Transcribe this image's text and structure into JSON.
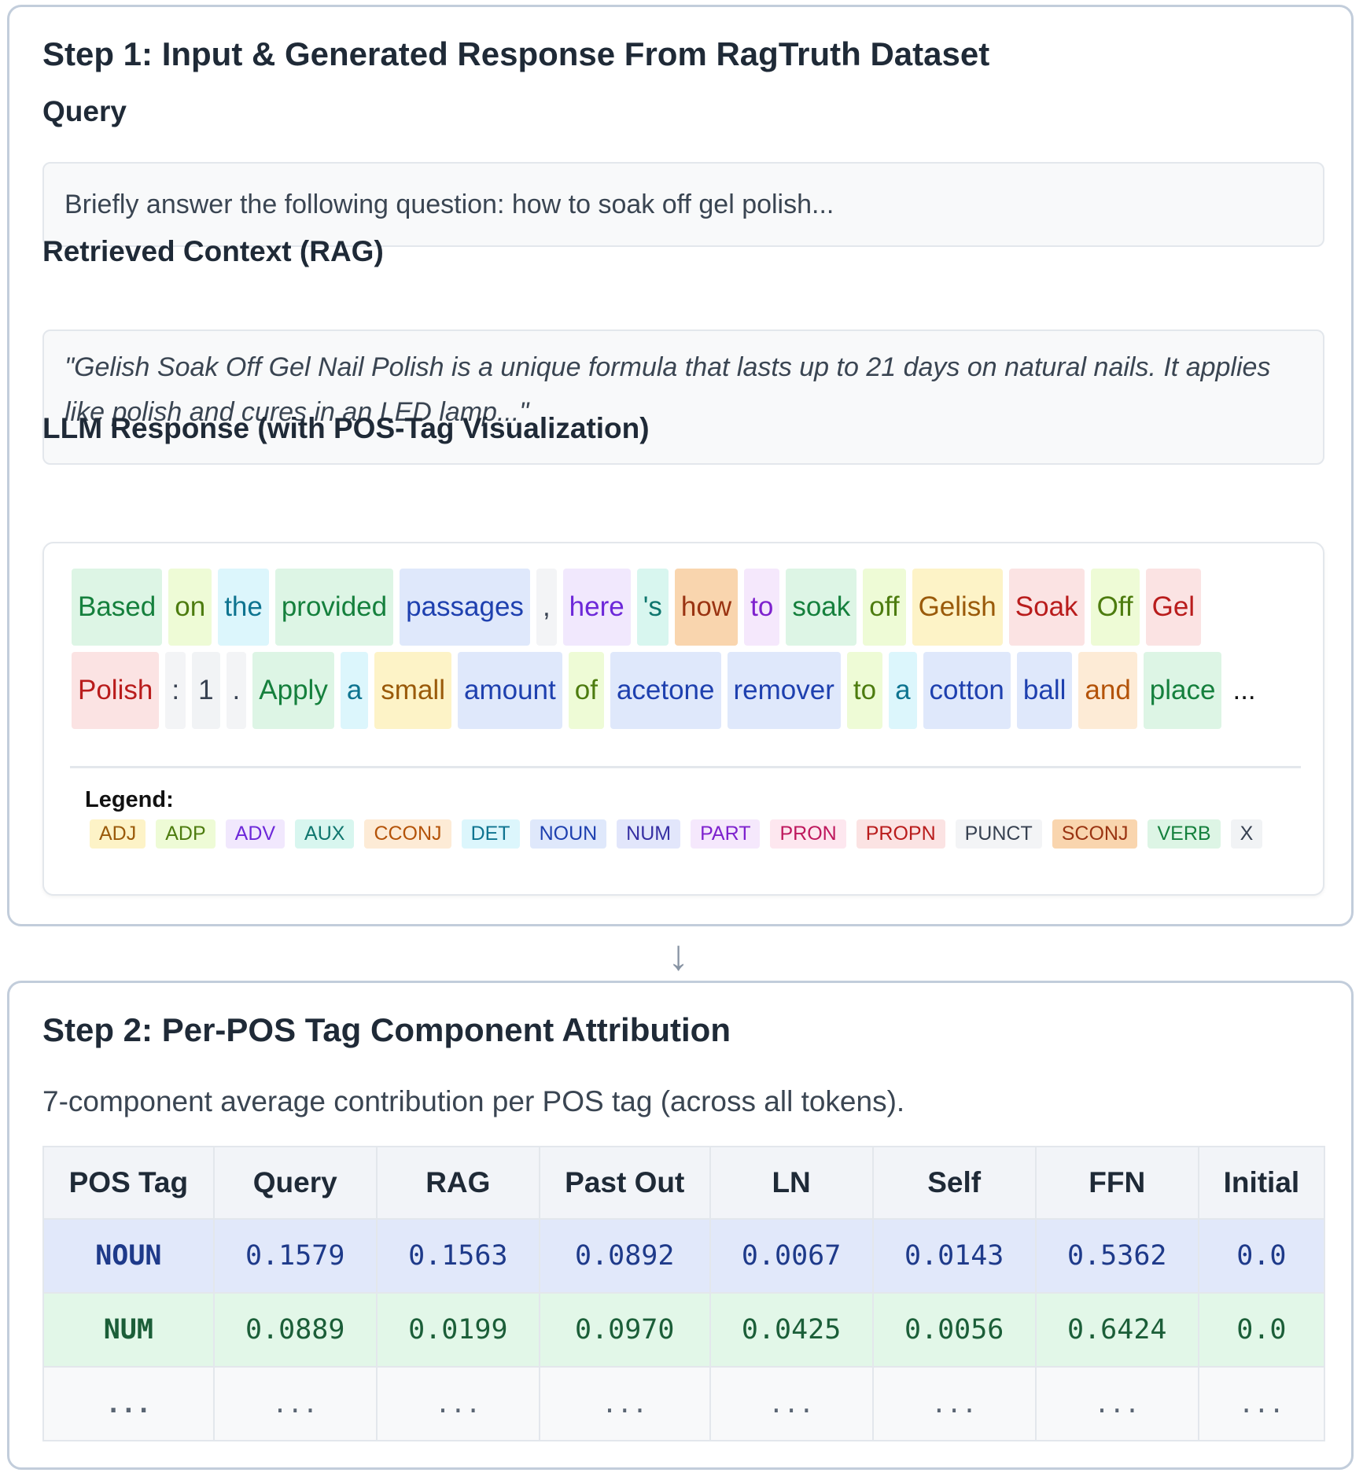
{
  "step1": {
    "title": "Step 1: Input & Generated Response From RagTruth Dataset",
    "query_label": "Query",
    "query_text": "Briefly answer the following question: how to soak off gel polish...",
    "context_label": "Retrieved Context (RAG)",
    "context_text": "\"Gelish Soak Off Gel Nail Polish is a unique formula that lasts up to 21 days on natural nails. It applies like polish and cures in an LED lamp...\"",
    "response_label": "LLM Response (with POS-Tag Visualization)",
    "token_lines": [
      [
        {
          "text": "Based",
          "pos": "VERB"
        },
        {
          "text": "on",
          "pos": "ADP"
        },
        {
          "text": "the",
          "pos": "DET"
        },
        {
          "text": "provided",
          "pos": "VERB"
        },
        {
          "text": "passages",
          "pos": "NOUN"
        },
        {
          "text": ",",
          "pos": "PUNCT"
        },
        {
          "text": "here",
          "pos": "ADV"
        },
        {
          "text": "'s",
          "pos": "AUX"
        },
        {
          "text": "how",
          "pos": "SCONJ"
        },
        {
          "text": "to",
          "pos": "PART"
        },
        {
          "text": "soak",
          "pos": "VERB"
        },
        {
          "text": "off",
          "pos": "ADP"
        },
        {
          "text": "Gelish",
          "pos": "ADJ"
        },
        {
          "text": "Soak",
          "pos": "PROPN"
        },
        {
          "text": "Off",
          "pos": "ADP"
        },
        {
          "text": "Gel",
          "pos": "PROPN"
        }
      ],
      [
        {
          "text": "Polish",
          "pos": "PROPN"
        },
        {
          "text": ":",
          "pos": "PUNCT"
        },
        {
          "text": "1",
          "pos": "X"
        },
        {
          "text": ".",
          "pos": "PUNCT"
        },
        {
          "text": "Apply",
          "pos": "VERB"
        },
        {
          "text": "a",
          "pos": "DET"
        },
        {
          "text": "small",
          "pos": "ADJ"
        },
        {
          "text": "amount",
          "pos": "NOUN"
        },
        {
          "text": "of",
          "pos": "ADP"
        },
        {
          "text": "acetone",
          "pos": "NOUN"
        },
        {
          "text": "remover",
          "pos": "NOUN"
        },
        {
          "text": "to",
          "pos": "ADP"
        },
        {
          "text": "a",
          "pos": "DET"
        },
        {
          "text": "cotton",
          "pos": "NOUN"
        },
        {
          "text": "ball",
          "pos": "NOUN"
        },
        {
          "text": "and",
          "pos": "CCONJ"
        },
        {
          "text": "place",
          "pos": "VERB"
        }
      ]
    ],
    "ellipsis": "...",
    "legend_title": "Legend:",
    "legend": [
      "ADJ",
      "ADP",
      "ADV",
      "AUX",
      "CCONJ",
      "DET",
      "NOUN",
      "NUM",
      "PART",
      "PRON",
      "PROPN",
      "PUNCT",
      "SCONJ",
      "VERB",
      "X"
    ],
    "pos_colors": {
      "ADJ": {
        "bg": "#fdf3c7",
        "fg": "#9a5a0a"
      },
      "ADP": {
        "bg": "#eefbd6",
        "fg": "#4d7c0f"
      },
      "ADV": {
        "bg": "#f1e8fd",
        "fg": "#6d28d9"
      },
      "AUX": {
        "bg": "#d8f6ef",
        "fg": "#0f766e"
      },
      "CCONJ": {
        "bg": "#fdebd6",
        "fg": "#b45309"
      },
      "DET": {
        "bg": "#dcf6fc",
        "fg": "#0e7490"
      },
      "NOUN": {
        "bg": "#dfe8fb",
        "fg": "#1e40af"
      },
      "NUM": {
        "bg": "#e2e6fb",
        "fg": "#3730a3"
      },
      "PART": {
        "bg": "#f5e8fc",
        "fg": "#7e22ce"
      },
      "PRON": {
        "bg": "#fde7ef",
        "fg": "#be185d"
      },
      "PROPN": {
        "bg": "#fbe3e3",
        "fg": "#b91c1c"
      },
      "PUNCT": {
        "bg": "#f3f4f6",
        "fg": "#374151"
      },
      "SCONJ": {
        "bg": "#f9d5ae",
        "fg": "#9a3412"
      },
      "VERB": {
        "bg": "#ddf5e5",
        "fg": "#15803d"
      },
      "X": {
        "bg": "#f1f3f5",
        "fg": "#374151"
      }
    }
  },
  "arrow": "↓",
  "step2": {
    "title": "Step 2: Per-POS Tag Component Attribution",
    "description": "7-component average contribution per POS tag (across all tokens).",
    "columns": [
      "POS Tag",
      "Query",
      "RAG",
      "Past Out",
      "LN",
      "Self",
      "FFN",
      "Initial"
    ],
    "rows": [
      {
        "cls": "noun",
        "cells": [
          "NOUN",
          "0.1579",
          "0.1563",
          "0.0892",
          "0.0067",
          "0.0143",
          "0.5362",
          "0.0"
        ]
      },
      {
        "cls": "num",
        "cells": [
          "NUM",
          "0.0889",
          "0.0199",
          "0.0970",
          "0.0425",
          "0.0056",
          "0.6424",
          "0.0"
        ]
      },
      {
        "cls": "dots",
        "cells": [
          "...",
          "...",
          "...",
          "...",
          "...",
          "...",
          "...",
          "..."
        ]
      }
    ]
  }
}
